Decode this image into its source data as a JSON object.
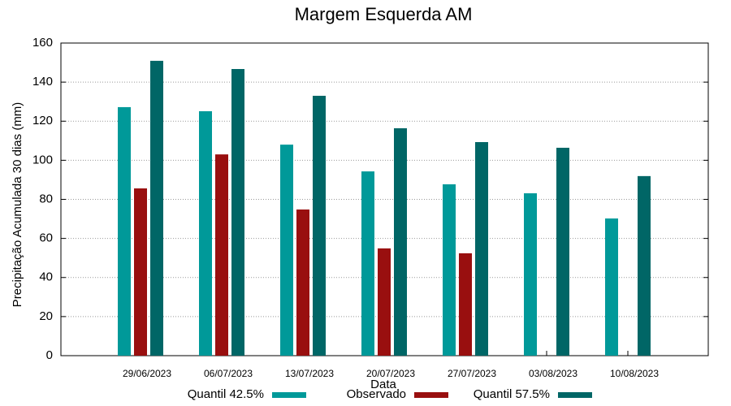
{
  "chart_data": {
    "type": "bar",
    "title": "Margem Esquerda AM",
    "x_label": "Data",
    "y_label": "Precipitação Acumulada 30 dias (mm)",
    "categories": [
      "29/06/2023",
      "06/07/2023",
      "13/07/2023",
      "20/07/2023",
      "27/07/2023",
      "03/08/2023",
      "10/08/2023"
    ],
    "series": [
      {
        "name": "Quantil 42.5%",
        "color": "#009999",
        "values": [
          127.2,
          125.1,
          108,
          94.3,
          87.7,
          83.1,
          70.2
        ]
      },
      {
        "name": "Observado",
        "color": "#990f0f",
        "values": [
          85.6,
          103,
          74.8,
          54.9,
          52.4,
          null,
          null
        ]
      },
      {
        "name": "Quantil 57.5%",
        "color": "#006666",
        "values": [
          150.9,
          146.7,
          133,
          116.4,
          109.3,
          106.4,
          91.9
        ]
      }
    ],
    "ylim": [
      0,
      160
    ],
    "yticks": [
      0,
      20,
      40,
      60,
      80,
      100,
      120,
      140,
      160
    ],
    "grid": true,
    "legend": "bottom"
  }
}
